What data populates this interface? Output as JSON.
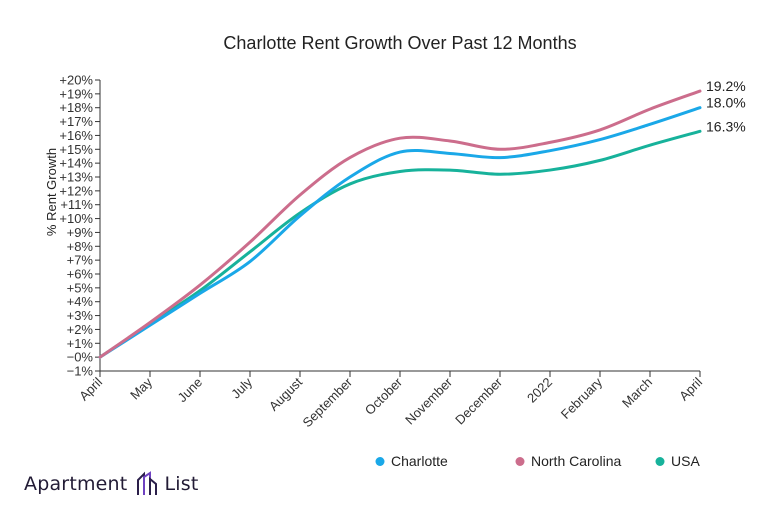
{
  "chart_data": {
    "type": "line",
    "title": "Charlotte Rent Growth Over Past 12 Months",
    "ylabel": "% Rent Growth",
    "xlabel": "",
    "x": [
      "April",
      "May",
      "June",
      "July",
      "August",
      "September",
      "October",
      "November",
      "December",
      "2022",
      "February",
      "March",
      "April"
    ],
    "ylim": [
      -1,
      20
    ],
    "yticks": [
      "−1%",
      "−0%",
      "+1%",
      "+2%",
      "+3%",
      "+4%",
      "+5%",
      "+6%",
      "+7%",
      "+8%",
      "+9%",
      "+10%",
      "+11%",
      "+12%",
      "+13%",
      "+14%",
      "+15%",
      "+16%",
      "+17%",
      "+18%",
      "+19%",
      "+20%"
    ],
    "series": [
      {
        "name": "Charlotte",
        "color": "#1aa8e8",
        "values": [
          0,
          2.3,
          4.6,
          6.9,
          10.2,
          13.0,
          14.8,
          14.7,
          14.4,
          14.9,
          15.7,
          16.8,
          18.0
        ],
        "end_label": "18.0%"
      },
      {
        "name": "North Carolina",
        "color": "#cc6d8c",
        "values": [
          0,
          2.5,
          5.2,
          8.3,
          11.7,
          14.4,
          15.8,
          15.6,
          15.0,
          15.5,
          16.4,
          17.9,
          19.2
        ],
        "end_label": "19.2%"
      },
      {
        "name": "USA",
        "color": "#17b29b",
        "values": [
          0,
          2.4,
          4.8,
          7.6,
          10.4,
          12.5,
          13.4,
          13.5,
          13.2,
          13.5,
          14.2,
          15.3,
          16.3
        ],
        "end_label": "16.3%"
      }
    ],
    "grid": false,
    "legend": "bottom-right"
  },
  "brand": {
    "left": "Apartment",
    "right": "List"
  }
}
